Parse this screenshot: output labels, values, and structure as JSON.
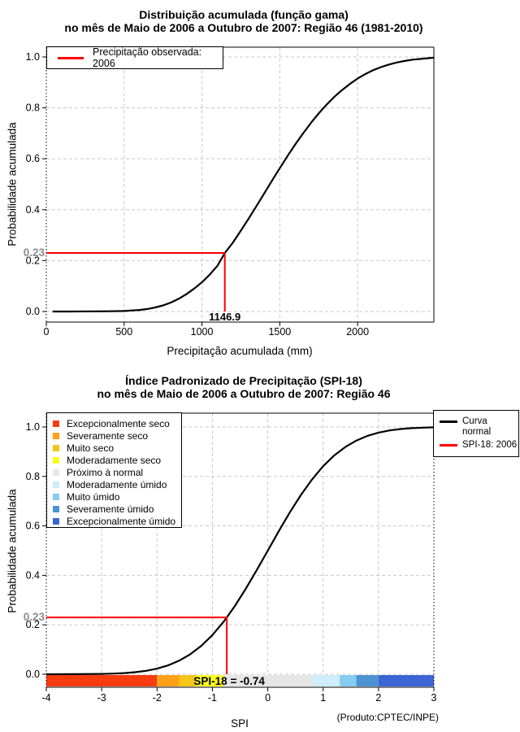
{
  "colors": {
    "background": "#FFFFFF",
    "curve": "#000000",
    "annotation_red": "#FF0000",
    "grid": "#C8C8C8",
    "annotation_y_label_gray": "#8C8C8C"
  },
  "chart_data": [
    {
      "type": "line",
      "title": "Distribuição acumulada (função gama)",
      "subtitle": "no mês de Maio de 2006 a Outubro de 2007: Região 46 (1981-2010)",
      "xlabel": "Precipitação acumulada (mm)",
      "ylabel": "Probabilidade acumulada",
      "xlim": [
        0,
        2490
      ],
      "ylim": [
        0,
        1
      ],
      "grid": true,
      "xtick_values": [
        0,
        500,
        1000,
        1500,
        2000
      ],
      "xtick_labels": [
        "0",
        "500",
        "1000",
        "1500",
        "2000"
      ],
      "ytick_values": [
        0,
        0.2,
        0.4,
        0.6,
        0.8,
        1
      ],
      "ytick_labels": [
        "0.0",
        "0.2",
        "0.4",
        "0.6",
        "0.8",
        "1.0"
      ],
      "grid_x": [
        500,
        1000,
        1500,
        2000
      ],
      "grid_y": [
        0,
        0.2,
        0.4,
        0.6,
        0.8,
        1
      ],
      "legend": [
        {
          "label": "Precipitação observada: 2006",
          "color": "#FF0000"
        }
      ],
      "series": [
        {
          "name": "Distribuição gama acumulada",
          "color": "#000000",
          "points": [
            [
              40,
              0
            ],
            [
              150,
              0
            ],
            [
              300,
              0.0005
            ],
            [
              400,
              0.001
            ],
            [
              500,
              0.002
            ],
            [
              550,
              0.004
            ],
            [
              600,
              0.006
            ],
            [
              650,
              0.01
            ],
            [
              700,
              0.016
            ],
            [
              750,
              0.024
            ],
            [
              800,
              0.035
            ],
            [
              850,
              0.05
            ],
            [
              900,
              0.068
            ],
            [
              950,
              0.09
            ],
            [
              1000,
              0.115
            ],
            [
              1050,
              0.145
            ],
            [
              1100,
              0.18
            ],
            [
              1147,
              0.23
            ],
            [
              1200,
              0.272
            ],
            [
              1250,
              0.318
            ],
            [
              1300,
              0.365
            ],
            [
              1350,
              0.414
            ],
            [
              1400,
              0.464
            ],
            [
              1450,
              0.514
            ],
            [
              1500,
              0.563
            ],
            [
              1550,
              0.611
            ],
            [
              1600,
              0.657
            ],
            [
              1650,
              0.7
            ],
            [
              1700,
              0.741
            ],
            [
              1750,
              0.778
            ],
            [
              1800,
              0.812
            ],
            [
              1850,
              0.843
            ],
            [
              1900,
              0.87
            ],
            [
              1950,
              0.894
            ],
            [
              2000,
              0.915
            ],
            [
              2050,
              0.933
            ],
            [
              2100,
              0.948
            ],
            [
              2150,
              0.96
            ],
            [
              2200,
              0.97
            ],
            [
              2250,
              0.978
            ],
            [
              2300,
              0.984
            ],
            [
              2350,
              0.989
            ],
            [
              2400,
              0.992
            ],
            [
              2450,
              0.995
            ],
            [
              2490,
              0.997
            ]
          ]
        }
      ],
      "annotation": {
        "x": 1146.9,
        "y": 0.23,
        "x_label": "1146.9",
        "y_label": "0.23",
        "color": "#FF0000"
      }
    },
    {
      "type": "line",
      "title": "Índice Padronizado de Precipitação (SPI-18)",
      "subtitle": "no mês de Maio de 2006 a Outubro de 2007: Região 46",
      "xlabel": "SPI",
      "ylabel": "Probabilidade acumulada",
      "xlim": [
        -4,
        3
      ],
      "ylim": [
        0,
        1
      ],
      "grid": true,
      "xtick_values": [
        -4,
        -3,
        -2,
        -1,
        0,
        1,
        2,
        3
      ],
      "xtick_labels": [
        "-4",
        "-3",
        "-2",
        "-1",
        "0",
        "1",
        "2",
        "3"
      ],
      "ytick_values": [
        0,
        0.2,
        0.4,
        0.6,
        0.8,
        1
      ],
      "ytick_labels": [
        "0.0",
        "0.2",
        "0.4",
        "0.6",
        "0.8",
        "1.0"
      ],
      "grid_x": [
        -3,
        -2,
        -1,
        0,
        1,
        2
      ],
      "grid_y": [
        0,
        0.2,
        0.4,
        0.6,
        0.8,
        1
      ],
      "legend": [
        {
          "label": "Curva normal",
          "color": "#000000"
        },
        {
          "label": "SPI-18: 2006",
          "color": "#FF0000"
        }
      ],
      "categories": [
        {
          "label": "Excepcionalmente seco",
          "color": "#F83C10",
          "range": [
            -4,
            -2
          ]
        },
        {
          "label": "Severamente seco",
          "color": "#FFA018",
          "range": [
            -2,
            -1.6
          ]
        },
        {
          "label": "Muito seco",
          "color": "#F5C518",
          "range": [
            -1.6,
            -1.3
          ]
        },
        {
          "label": "Moderadamente seco",
          "color": "#FCFC20",
          "range": [
            -1.3,
            -0.8
          ]
        },
        {
          "label": "Próximo à normal",
          "color": "#E6E6E6",
          "range": [
            -0.8,
            0.8
          ]
        },
        {
          "label": "Moderadamente úmido",
          "color": "#CFEDFA",
          "range": [
            0.8,
            1.3
          ]
        },
        {
          "label": "Muito úmido",
          "color": "#86CBF0",
          "range": [
            1.3,
            1.6
          ]
        },
        {
          "label": "Severamente úmido",
          "color": "#4A92D2",
          "range": [
            1.6,
            2
          ]
        },
        {
          "label": "Excepcionalmente úmido",
          "color": "#3C64D2",
          "range": [
            2,
            3
          ]
        }
      ],
      "series": [
        {
          "name": "Curva normal",
          "color": "#000000",
          "points": [
            [
              -4,
              0
            ],
            [
              -3.5,
              0.0002
            ],
            [
              -3,
              0.0013
            ],
            [
              -2.8,
              0.0026
            ],
            [
              -2.6,
              0.0047
            ],
            [
              -2.4,
              0.0082
            ],
            [
              -2.2,
              0.0139
            ],
            [
              -2,
              0.0228
            ],
            [
              -1.8,
              0.0359
            ],
            [
              -1.6,
              0.0548
            ],
            [
              -1.4,
              0.0808
            ],
            [
              -1.2,
              0.1151
            ],
            [
              -1,
              0.1587
            ],
            [
              -0.8,
              0.2119
            ],
            [
              -0.74,
              0.23
            ],
            [
              -0.6,
              0.2743
            ],
            [
              -0.4,
              0.3446
            ],
            [
              -0.2,
              0.4207
            ],
            [
              0,
              0.5
            ],
            [
              0.2,
              0.5793
            ],
            [
              0.4,
              0.6554
            ],
            [
              0.6,
              0.7257
            ],
            [
              0.8,
              0.7881
            ],
            [
              1,
              0.8413
            ],
            [
              1.2,
              0.8849
            ],
            [
              1.4,
              0.9192
            ],
            [
              1.6,
              0.9452
            ],
            [
              1.8,
              0.9641
            ],
            [
              2,
              0.9772
            ],
            [
              2.2,
              0.9861
            ],
            [
              2.4,
              0.9918
            ],
            [
              2.6,
              0.9953
            ],
            [
              2.8,
              0.9974
            ],
            [
              3,
              0.9987
            ]
          ]
        }
      ],
      "annotation": {
        "x": -0.74,
        "y": 0.23,
        "text": "SPI-18 = -0.74",
        "y_label": "0.23",
        "color": "#FF0000"
      },
      "footnote": "(Produto:CPTEC/INPE)"
    }
  ]
}
